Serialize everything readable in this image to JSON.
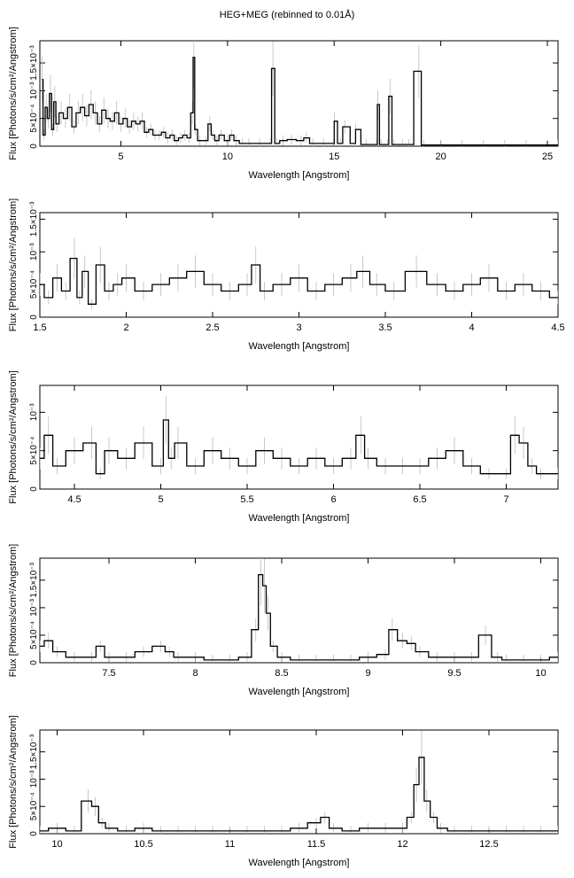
{
  "title": "HEG+MEG (rebinned to 0.01Å)",
  "chart_data": [
    {
      "type": "line",
      "xlabel": "Wavelength [Angstrom]",
      "ylabel": "Flux [Photons/s/cm²/Angstrom]",
      "xlim": [
        1.2,
        25.5
      ],
      "ylim": [
        0,
        0.0019
      ],
      "xticks": [
        5,
        10,
        15,
        20,
        25
      ],
      "xtick_labels": [
        "5",
        "10",
        "15",
        "20",
        "25"
      ],
      "yticks": [
        0,
        0.0005,
        0.001,
        0.0015
      ],
      "ytick_labels": [
        "0",
        "5×10⁻⁴",
        "10⁻³",
        "1.5×10⁻³"
      ],
      "series": [
        {
          "x": [
            1.3,
            1.4,
            1.5,
            1.6,
            1.7,
            1.8,
            1.9,
            2.0,
            2.2,
            2.4,
            2.6,
            2.8,
            3.0,
            3.2,
            3.4,
            3.6,
            3.8,
            4.0,
            4.2,
            4.4,
            4.6,
            4.8,
            5.0,
            5.2,
            5.4,
            5.6,
            5.8,
            6.0,
            6.2,
            6.4,
            6.6,
            6.8,
            7.0,
            7.2,
            7.4,
            7.6,
            7.8,
            8.0,
            8.2,
            8.35,
            8.42,
            8.5,
            8.7,
            9.0,
            9.17,
            9.3,
            9.5,
            9.7,
            10.0,
            10.2,
            10.4,
            10.7,
            11.0,
            11.5,
            12.0,
            12.13,
            12.3,
            12.6,
            13.0,
            13.45,
            13.7,
            14.0,
            14.5,
            15.0,
            15.01,
            15.3,
            15.5,
            16.0,
            16.01,
            16.5,
            17.0,
            17.05,
            17.2,
            17.5,
            17.62,
            17.8,
            18.2,
            18.5,
            18.97,
            19.2,
            20.0,
            21.0,
            22.0,
            23.0,
            24.0,
            25.5
          ],
          "y": [
            0.0012,
            0.0002,
            0.0007,
            0.0005,
            0.00095,
            0.0003,
            0.0008,
            0.0004,
            0.0006,
            0.0005,
            0.0007,
            0.00035,
            0.0006,
            0.0007,
            0.00055,
            0.00075,
            0.0006,
            0.0004,
            0.00065,
            0.0005,
            0.00045,
            0.0006,
            0.0004,
            0.0005,
            0.00035,
            0.00045,
            0.0004,
            0.00045,
            0.00025,
            0.0003,
            0.0002,
            0.0002,
            0.00025,
            0.00015,
            0.0002,
            0.0001,
            0.00015,
            0.0002,
            0.00015,
            0.0006,
            0.0016,
            0.0003,
            0.0001,
            0.0001,
            0.0004,
            0.0002,
            0.0001,
            0.0002,
            0.0001,
            0.0002,
            0.0001,
            5e-05,
            5e-05,
            5e-05,
            5e-05,
            0.0014,
            5e-05,
            0.0001,
            0.00012,
            0.0001,
            0.00015,
            5e-05,
            5e-05,
            5e-05,
            0.00045,
            5e-05,
            0.00035,
            5e-05,
            0.0003,
            3e-05,
            3e-05,
            0.00075,
            3e-05,
            3e-05,
            0.0009,
            3e-05,
            3e-05,
            3e-05,
            0.00135,
            2e-05,
            2e-05,
            2e-05,
            2e-05,
            2e-05,
            2e-05,
            2e-05
          ]
        }
      ]
    },
    {
      "type": "line",
      "xlabel": "Wavelength [Angstrom]",
      "ylabel": "Flux [Photons/s/cm²/Angstrom]",
      "xlim": [
        1.5,
        4.5
      ],
      "ylim": [
        0,
        0.0016
      ],
      "xticks": [
        1.5,
        2,
        2.5,
        3,
        3.5,
        4,
        4.5
      ],
      "xtick_labels": [
        "1.5",
        "2",
        "2.5",
        "3",
        "3.5",
        "4",
        "4.5"
      ],
      "yticks": [
        0,
        0.0005,
        0.001,
        0.0015
      ],
      "ytick_labels": [
        "0",
        "5×10⁻⁴",
        "10⁻³",
        "1.5×10⁻³"
      ],
      "series": [
        {
          "x": [
            1.5,
            1.55,
            1.6,
            1.65,
            1.7,
            1.73,
            1.76,
            1.8,
            1.85,
            1.9,
            1.95,
            2.0,
            2.1,
            2.2,
            2.3,
            2.4,
            2.5,
            2.6,
            2.7,
            2.75,
            2.8,
            2.9,
            3.0,
            3.1,
            3.2,
            3.3,
            3.37,
            3.45,
            3.55,
            3.68,
            3.8,
            3.9,
            4.0,
            4.1,
            4.2,
            4.3,
            4.4,
            4.5
          ],
          "y": [
            0.0005,
            0.0003,
            0.0006,
            0.0004,
            0.0009,
            0.0003,
            0.0007,
            0.0002,
            0.0008,
            0.0004,
            0.0005,
            0.0006,
            0.0004,
            0.0005,
            0.0006,
            0.0007,
            0.0005,
            0.0004,
            0.0005,
            0.0008,
            0.0004,
            0.0005,
            0.0006,
            0.0004,
            0.0005,
            0.0006,
            0.0007,
            0.0005,
            0.0004,
            0.0007,
            0.0005,
            0.0004,
            0.0005,
            0.0006,
            0.0004,
            0.0005,
            0.0004,
            0.0003
          ]
        }
      ]
    },
    {
      "type": "line",
      "xlabel": "Wavelength [Angstrom]",
      "ylabel": "Flux [Photons/s/cm²/Angstrom]",
      "xlim": [
        4.3,
        7.3
      ],
      "ylim": [
        0,
        0.00135
      ],
      "xticks": [
        4.5,
        5,
        5.5,
        6,
        6.5,
        7
      ],
      "xtick_labels": [
        "4.5",
        "5",
        "5.5",
        "6",
        "6.5",
        "7"
      ],
      "yticks": [
        0,
        0.0005,
        0.001
      ],
      "ytick_labels": [
        "0",
        "5×10⁻⁴",
        "10⁻³"
      ],
      "series": [
        {
          "x": [
            4.3,
            4.35,
            4.4,
            4.5,
            4.6,
            4.65,
            4.7,
            4.8,
            4.9,
            5.0,
            5.03,
            5.06,
            5.1,
            5.2,
            5.3,
            5.4,
            5.5,
            5.6,
            5.7,
            5.8,
            5.9,
            6.0,
            6.1,
            6.16,
            6.2,
            6.3,
            6.4,
            6.5,
            6.6,
            6.7,
            6.8,
            6.9,
            7.0,
            7.05,
            7.1,
            7.15,
            7.2,
            7.3
          ],
          "y": [
            0.0004,
            0.0007,
            0.0003,
            0.0005,
            0.0006,
            0.0002,
            0.0005,
            0.0004,
            0.0006,
            0.0003,
            0.0009,
            0.0004,
            0.0006,
            0.0003,
            0.0005,
            0.0004,
            0.0003,
            0.0005,
            0.0004,
            0.0003,
            0.0004,
            0.0003,
            0.0004,
            0.0007,
            0.0004,
            0.0003,
            0.0003,
            0.0003,
            0.0004,
            0.0005,
            0.0003,
            0.0002,
            0.0002,
            0.0007,
            0.0006,
            0.0003,
            0.0002,
            0.0002
          ]
        }
      ]
    },
    {
      "type": "line",
      "xlabel": "Wavelength [Angstrom]",
      "ylabel": "Flux [Photons/s/cm²/Angstrom]",
      "xlim": [
        7.1,
        10.1
      ],
      "ylim": [
        0,
        0.0019
      ],
      "xticks": [
        7.5,
        8,
        8.5,
        9,
        9.5,
        10
      ],
      "xtick_labels": [
        "7.5",
        "8",
        "8.5",
        "9",
        "9.5",
        "10"
      ],
      "yticks": [
        0,
        0.0005,
        0.001,
        0.0015
      ],
      "ytick_labels": [
        "0",
        "5×10⁻⁴",
        "10⁻³",
        "1.5×10⁻³"
      ],
      "series": [
        {
          "x": [
            7.1,
            7.15,
            7.2,
            7.3,
            7.4,
            7.45,
            7.5,
            7.6,
            7.7,
            7.8,
            7.85,
            7.9,
            8.0,
            8.1,
            8.2,
            8.3,
            8.35,
            8.38,
            8.4,
            8.42,
            8.45,
            8.5,
            8.6,
            8.7,
            8.8,
            8.9,
            9.0,
            9.1,
            9.14,
            9.2,
            9.25,
            9.3,
            9.4,
            9.5,
            9.6,
            9.68,
            9.75,
            9.8,
            9.9,
            10.0,
            10.1
          ],
          "y": [
            0.0003,
            0.0004,
            0.0002,
            0.0001,
            0.0001,
            0.0003,
            0.0001,
            0.0001,
            0.0002,
            0.0003,
            0.0002,
            0.0001,
            0.0001,
            5e-05,
            5e-05,
            0.0001,
            0.0006,
            0.0016,
            0.0014,
            0.0009,
            0.0003,
            0.0001,
            5e-05,
            5e-05,
            5e-05,
            5e-05,
            0.0001,
            0.00015,
            0.0006,
            0.0004,
            0.00035,
            0.0002,
            0.0001,
            0.0001,
            0.0001,
            0.0005,
            0.0001,
            5e-05,
            5e-05,
            5e-05,
            0.0001
          ]
        }
      ]
    },
    {
      "type": "line",
      "xlabel": "Wavelength [Angstrom]",
      "ylabel": "Flux [Photons/s/cm²/Angstrom]",
      "xlim": [
        9.9,
        12.9
      ],
      "ylim": [
        0,
        0.0019
      ],
      "xticks": [
        10,
        10.5,
        11,
        11.5,
        12,
        12.5
      ],
      "xtick_labels": [
        "10",
        "10.5",
        "11",
        "11.5",
        "12",
        "12.5"
      ],
      "yticks": [
        0,
        0.0005,
        0.001,
        0.0015
      ],
      "ytick_labels": [
        "0",
        "5×10⁻⁴",
        "10⁻³",
        "1.5×10⁻³"
      ],
      "series": [
        {
          "x": [
            9.9,
            10.0,
            10.1,
            10.18,
            10.22,
            10.26,
            10.3,
            10.4,
            10.5,
            10.6,
            10.7,
            10.8,
            10.9,
            11.0,
            11.1,
            11.2,
            11.3,
            11.4,
            11.5,
            11.55,
            11.6,
            11.7,
            11.8,
            11.9,
            12.0,
            12.05,
            12.08,
            12.11,
            12.14,
            12.18,
            12.22,
            12.3,
            12.4,
            12.5,
            12.6,
            12.7,
            12.8,
            12.9
          ],
          "y": [
            5e-05,
            0.0001,
            5e-05,
            0.0006,
            0.0005,
            0.0002,
            0.0001,
            5e-05,
            0.0001,
            5e-05,
            5e-05,
            5e-05,
            5e-05,
            5e-05,
            5e-05,
            5e-05,
            5e-05,
            0.0001,
            0.0002,
            0.0003,
            0.0001,
            5e-05,
            0.0001,
            0.0001,
            0.0001,
            0.0003,
            0.0009,
            0.0014,
            0.0006,
            0.0003,
            0.0001,
            5e-05,
            5e-05,
            5e-05,
            5e-05,
            5e-05,
            5e-05,
            5e-05
          ]
        }
      ]
    }
  ]
}
